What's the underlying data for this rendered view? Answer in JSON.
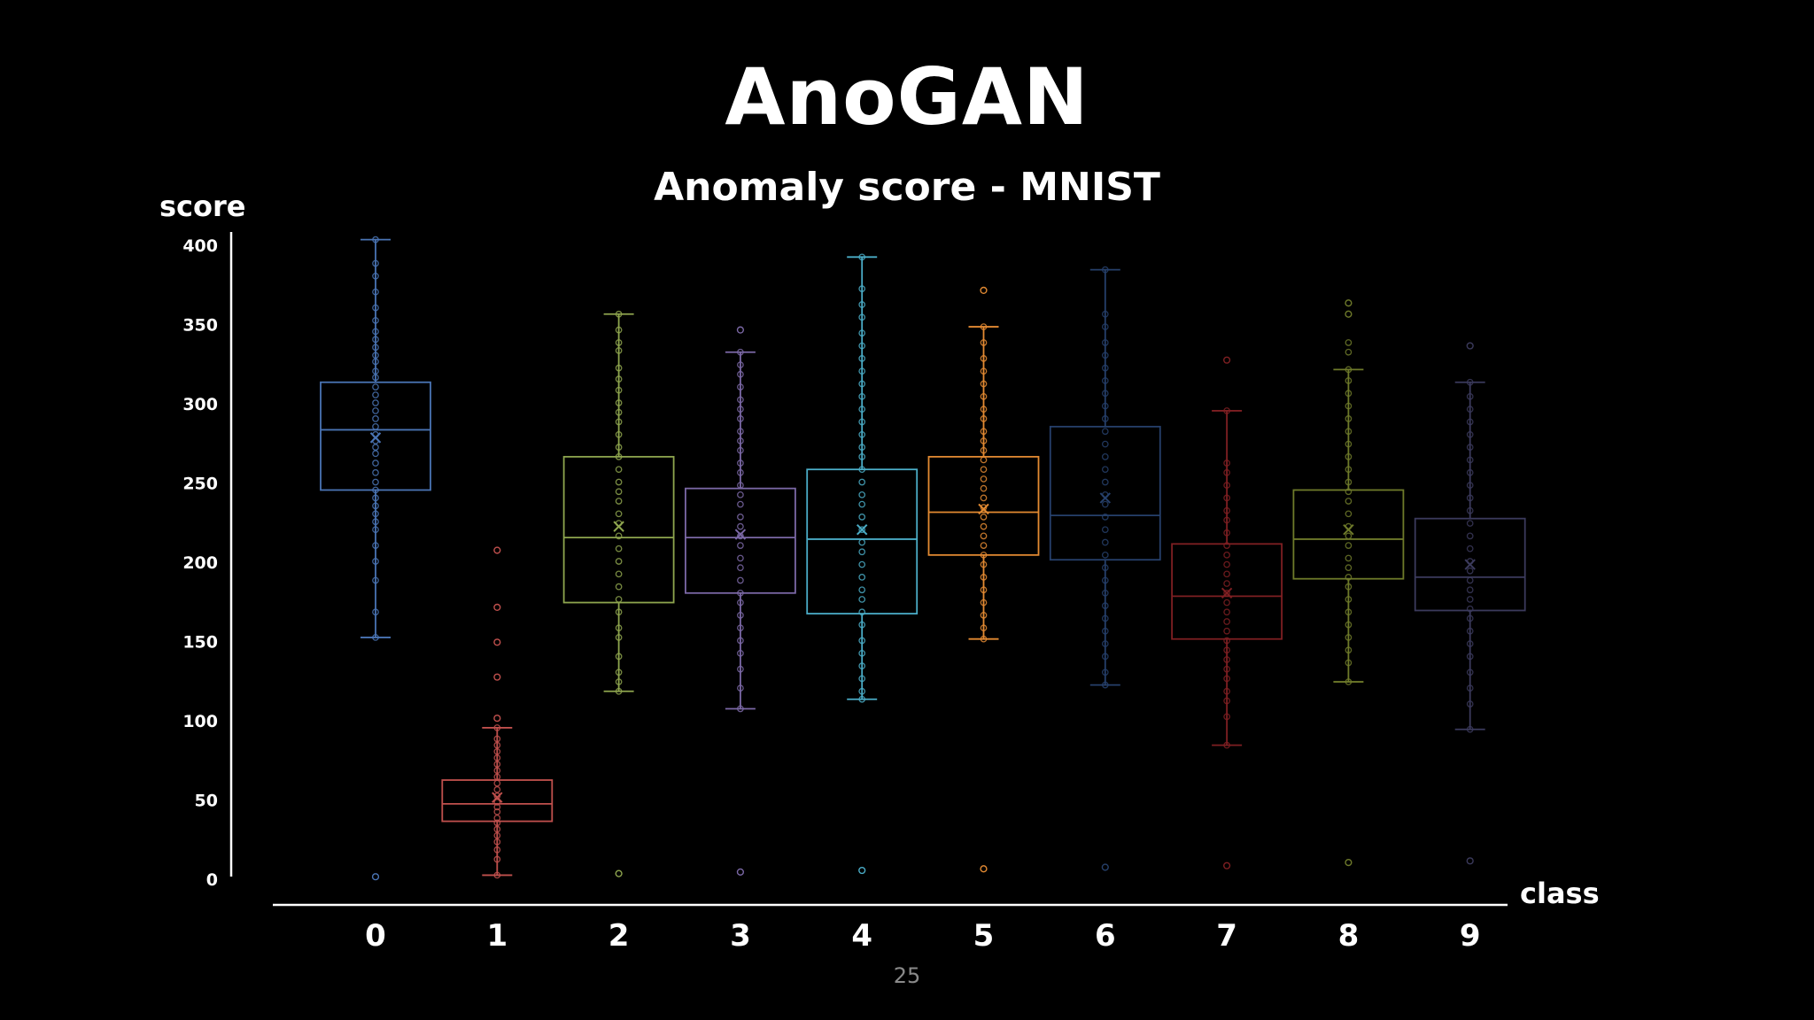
{
  "slide": {
    "title": "AnoGAN",
    "subtitle": "Anomaly score - MNIST",
    "page_number": "25"
  },
  "chart_data": {
    "type": "box",
    "title": "Anomaly score - MNIST",
    "xlabel": "class",
    "ylabel": "score",
    "ylim": [
      0,
      400
    ],
    "yticks": [
      0,
      50,
      100,
      150,
      200,
      250,
      300,
      350,
      400
    ],
    "yticklabels": [
      "0",
      "50",
      "100",
      "150",
      "200",
      "250",
      "300",
      "350",
      "400"
    ],
    "categories": [
      "0",
      "1",
      "2",
      "3",
      "4",
      "5",
      "6",
      "7",
      "8",
      "9"
    ],
    "grid": false,
    "series": [
      {
        "color": "#4a74b4",
        "min": 152,
        "q1": 245,
        "median": 283,
        "q3": 313,
        "max": 403,
        "mean": 278,
        "outliers": [
          1
        ],
        "points": [
          403,
          388,
          380,
          370,
          360,
          352,
          345,
          340,
          335,
          330,
          326,
          320,
          316,
          310,
          305,
          300,
          295,
          290,
          285,
          280,
          276,
          272,
          268,
          262,
          256,
          250,
          245,
          240,
          235,
          230,
          225,
          220,
          210,
          200,
          188,
          168,
          152
        ]
      },
      {
        "color": "#c0504d",
        "min": 2,
        "q1": 36,
        "median": 47,
        "q3": 62,
        "max": 95,
        "mean": 51,
        "outliers": [
          101,
          127,
          149,
          171,
          207
        ],
        "points": [
          95,
          88,
          84,
          80,
          76,
          72,
          68,
          64,
          60,
          56,
          52,
          48,
          45,
          42,
          38,
          35,
          31,
          27,
          23,
          18,
          12,
          2
        ]
      },
      {
        "color": "#8ea54e",
        "min": 118,
        "q1": 174,
        "median": 215,
        "q3": 266,
        "max": 356,
        "mean": 222,
        "outliers": [
          3
        ],
        "points": [
          356,
          346,
          338,
          333,
          322,
          315,
          308,
          300,
          294,
          288,
          280,
          272,
          266,
          258,
          250,
          244,
          238,
          230,
          224,
          216,
          208,
          200,
          192,
          184,
          176,
          168,
          158,
          152,
          140,
          130,
          124,
          118
        ]
      },
      {
        "color": "#7b68a6",
        "min": 107,
        "q1": 180,
        "median": 215,
        "q3": 246,
        "max": 332,
        "mean": 217,
        "outliers": [
          346,
          4
        ],
        "points": [
          332,
          324,
          318,
          310,
          302,
          296,
          290,
          282,
          276,
          270,
          262,
          256,
          248,
          242,
          236,
          228,
          222,
          216,
          210,
          202,
          196,
          188,
          180,
          174,
          166,
          158,
          150,
          142,
          132,
          120,
          107
        ]
      },
      {
        "color": "#4aacc6",
        "min": 113,
        "q1": 167,
        "median": 214,
        "q3": 258,
        "max": 392,
        "mean": 220,
        "outliers": [
          5
        ],
        "points": [
          392,
          372,
          362,
          354,
          344,
          336,
          328,
          320,
          312,
          304,
          296,
          288,
          280,
          272,
          266,
          258,
          250,
          242,
          236,
          228,
          220,
          212,
          206,
          198,
          190,
          182,
          176,
          168,
          160,
          150,
          142,
          134,
          126,
          118,
          113
        ]
      },
      {
        "color": "#e38a32",
        "min": 151,
        "q1": 204,
        "median": 231,
        "q3": 266,
        "max": 348,
        "mean": 233,
        "outliers": [
          371,
          6
        ],
        "points": [
          348,
          338,
          328,
          320,
          312,
          304,
          296,
          290,
          282,
          276,
          270,
          264,
          258,
          252,
          246,
          240,
          234,
          228,
          222,
          216,
          210,
          204,
          198,
          190,
          182,
          174,
          166,
          158,
          151
        ]
      },
      {
        "color": "#26406b",
        "min": 122,
        "q1": 201,
        "median": 229,
        "q3": 285,
        "max": 384,
        "mean": 240,
        "outliers": [
          7
        ],
        "points": [
          384,
          356,
          348,
          338,
          330,
          322,
          314,
          306,
          298,
          290,
          282,
          274,
          266,
          258,
          250,
          242,
          236,
          228,
          220,
          212,
          204,
          196,
          188,
          180,
          172,
          164,
          156,
          148,
          140,
          130,
          122
        ]
      },
      {
        "color": "#7e1f22",
        "min": 84,
        "q1": 151,
        "median": 178,
        "q3": 211,
        "max": 295,
        "mean": 180,
        "outliers": [
          327,
          8
        ],
        "points": [
          295,
          262,
          256,
          248,
          240,
          232,
          226,
          218,
          210,
          204,
          198,
          192,
          186,
          180,
          174,
          168,
          162,
          156,
          150,
          144,
          138,
          132,
          126,
          118,
          112,
          102,
          84
        ]
      },
      {
        "color": "#6e7a2a",
        "min": 124,
        "q1": 189,
        "median": 214,
        "q3": 245,
        "max": 321,
        "mean": 220,
        "outliers": [
          363,
          356,
          10
        ],
        "points": [
          338,
          332,
          321,
          314,
          306,
          298,
          290,
          282,
          274,
          266,
          258,
          250,
          244,
          238,
          230,
          222,
          216,
          210,
          202,
          196,
          190,
          184,
          176,
          168,
          160,
          152,
          144,
          136,
          124
        ]
      },
      {
        "color": "#3b3a5c",
        "min": 94,
        "q1": 169,
        "median": 190,
        "q3": 227,
        "max": 313,
        "mean": 198,
        "outliers": [
          336,
          11
        ],
        "points": [
          313,
          304,
          296,
          288,
          280,
          272,
          264,
          256,
          248,
          240,
          232,
          224,
          216,
          208,
          200,
          194,
          188,
          182,
          176,
          170,
          164,
          156,
          148,
          140,
          130,
          120,
          110,
          94
        ]
      }
    ]
  }
}
